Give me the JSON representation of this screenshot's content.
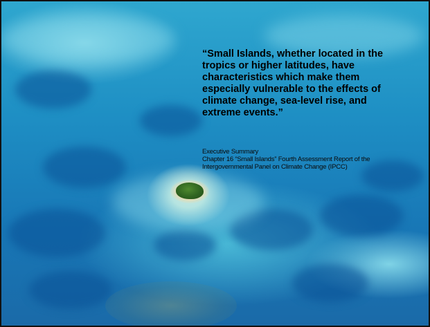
{
  "slide": {
    "quote_text": "“Small Islands, whether located in the\ntropics or higher latitudes, have\ncharacteristics which make them\nespecially vulnerable to the effects of\nclimate change, sea-level rise, and\nextreme events.”",
    "attribution": {
      "line1": "Executive Summary",
      "line2": "Chapter 16 “Small Islands”  Fourth Assessment Report of the",
      "line3": "Intergovernmental Panel on Climate Change (IPCC)"
    },
    "colors": {
      "text": "#000000",
      "ocean_deep": "#1a6aa8",
      "ocean_shallow": "#7fd3e6",
      "island_vegetation": "#2f6420",
      "sand": "#efe7c9",
      "border": "#111111"
    }
  }
}
